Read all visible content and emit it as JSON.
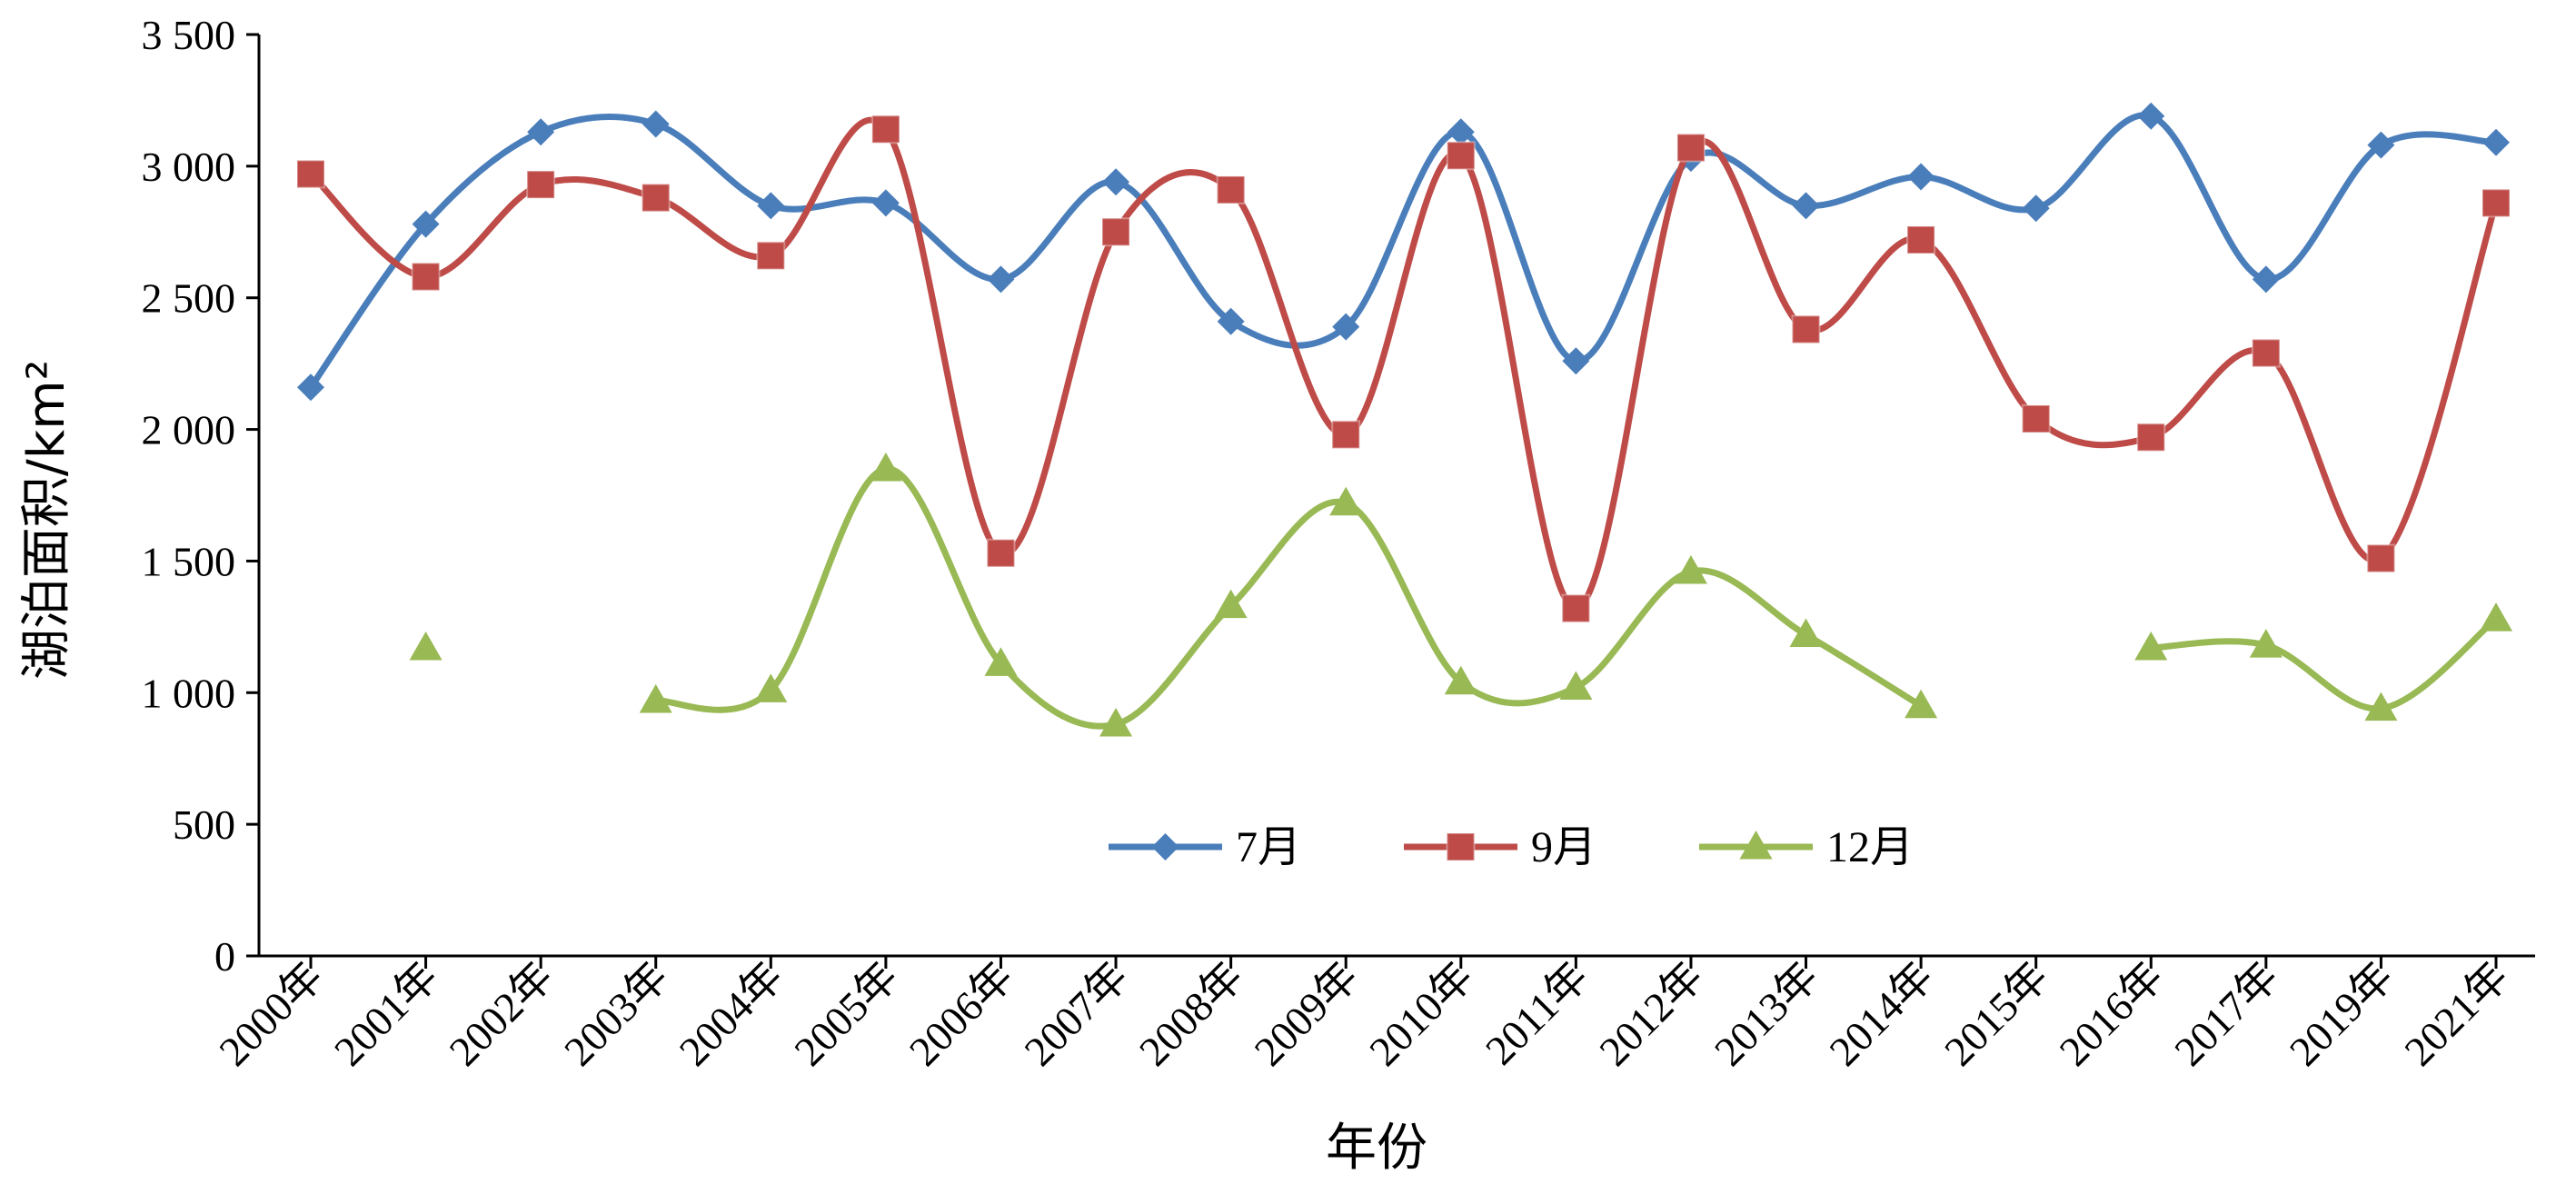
{
  "chart_data": {
    "type": "line",
    "title": "",
    "xlabel": "年份",
    "ylabel": "湖泊面积/km²",
    "ylim": [
      0,
      3500
    ],
    "yticks": [
      0,
      500,
      1000,
      1500,
      2000,
      2500,
      3000,
      3500
    ],
    "ytick_labels": [
      "0",
      "500",
      "1 000",
      "1 500",
      "2 000",
      "2 500",
      "3 000",
      "3 500"
    ],
    "categories": [
      "2000年",
      "2001年",
      "2002年",
      "2003年",
      "2004年",
      "2005年",
      "2006年",
      "2007年",
      "2008年",
      "2009年",
      "2010年",
      "2011年",
      "2012年",
      "2013年",
      "2014年",
      "2015年",
      "2016年",
      "2017年",
      "2019年",
      "2021年"
    ],
    "grid": false,
    "legend_position": "bottom-center",
    "series": [
      {
        "name": "7月",
        "color": "#4a7ebb",
        "marker": "diamond",
        "values": [
          2160,
          2780,
          3130,
          3160,
          2850,
          2860,
          2570,
          2940,
          2410,
          2390,
          3130,
          2260,
          3030,
          2850,
          2960,
          2840,
          3190,
          2570,
          3080,
          3090
        ]
      },
      {
        "name": "9月",
        "color": "#be4b48",
        "marker": "square",
        "values": [
          2970,
          2580,
          2930,
          2880,
          2660,
          3140,
          1530,
          2750,
          2910,
          1980,
          3040,
          1320,
          3070,
          2380,
          2720,
          2040,
          1970,
          2290,
          1510,
          2860
        ]
      },
      {
        "name": "12月",
        "color": "#98b954",
        "marker": "triangle",
        "values": [
          null,
          1170,
          null,
          970,
          1010,
          1850,
          1110,
          880,
          1330,
          1720,
          1040,
          1020,
          1460,
          1220,
          950,
          null,
          1170,
          1180,
          940,
          1280
        ]
      }
    ]
  }
}
